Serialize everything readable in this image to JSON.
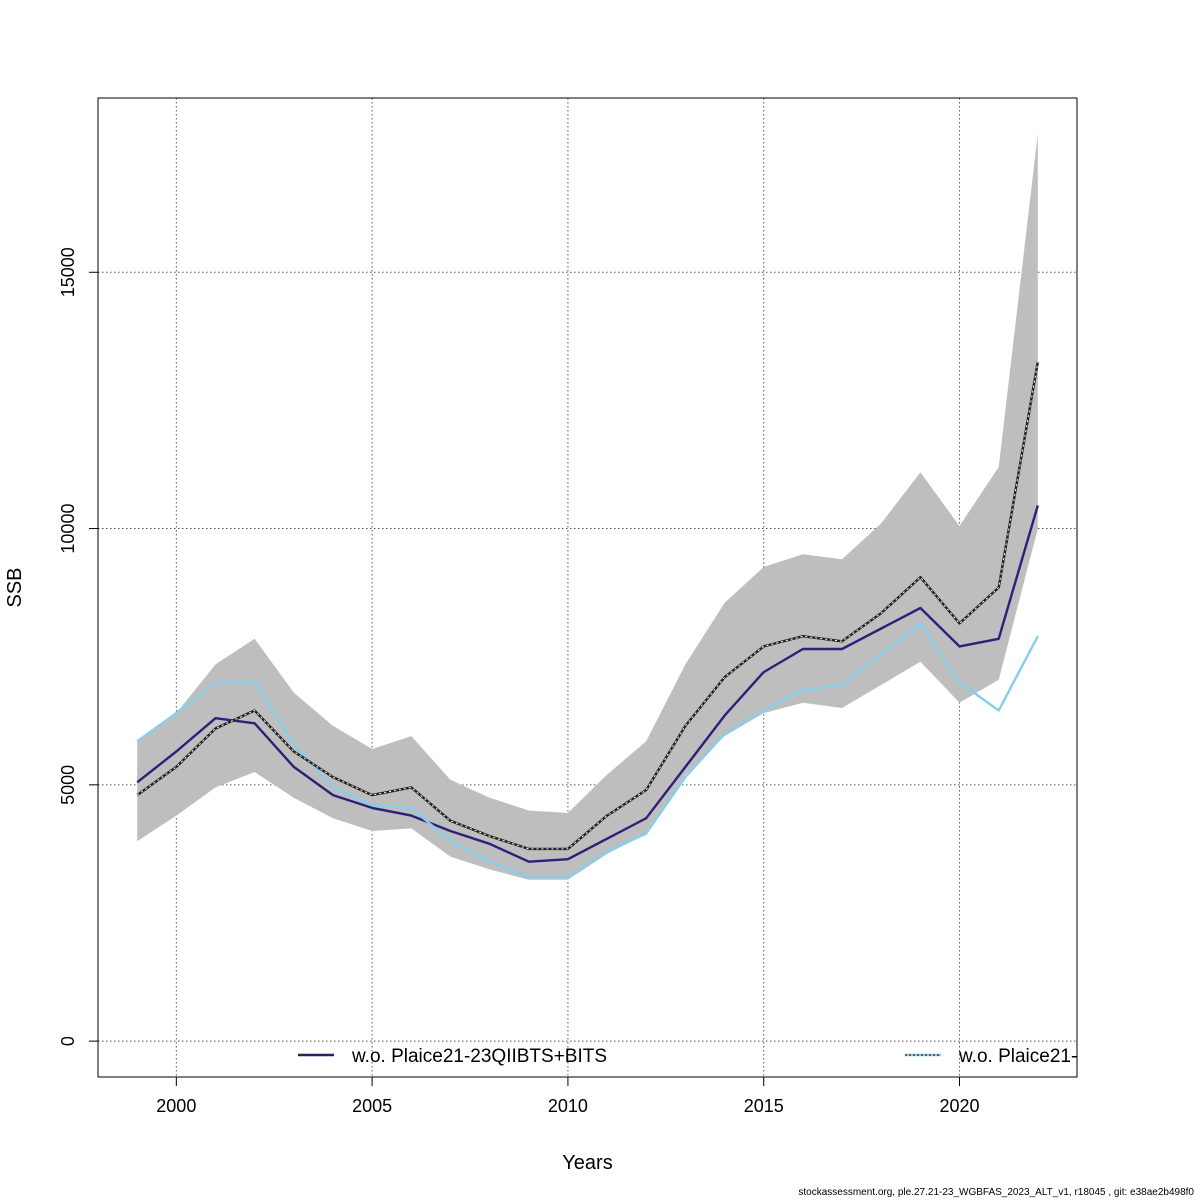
{
  "chart_data": {
    "type": "line",
    "xlabel": "Years",
    "ylabel": "SSB",
    "xlim": [
      1998,
      2023
    ],
    "ylim": [
      -700,
      18400
    ],
    "x_ticks": [
      2000,
      2005,
      2010,
      2015,
      2020
    ],
    "y_ticks": [
      0,
      5000,
      10000,
      15000
    ],
    "grid": true,
    "x": [
      1999,
      2000,
      2001,
      2002,
      2003,
      2004,
      2005,
      2006,
      2007,
      2008,
      2009,
      2010,
      2011,
      2012,
      2013,
      2014,
      2015,
      2016,
      2017,
      2018,
      2019,
      2020,
      2021,
      2022
    ],
    "band": {
      "upper": [
        5850,
        6400,
        7350,
        7850,
        6800,
        6150,
        5700,
        5950,
        5100,
        4750,
        4500,
        4450,
        5200,
        5850,
        7350,
        8550,
        9250,
        9500,
        9400,
        10100,
        11100,
        10050,
        11200,
        17700
      ],
      "lower": [
        3900,
        4400,
        4950,
        5250,
        4750,
        4350,
        4100,
        4150,
        3600,
        3350,
        3150,
        3150,
        3650,
        4050,
        5200,
        5950,
        6400,
        6600,
        6500,
        6950,
        7400,
        6600,
        7050,
        10000
      ],
      "color": "#bebebe"
    },
    "series": [
      {
        "name": "w.o. Plaice21-23QIIBTS+BITS",
        "color": "#2f1f7a",
        "values": [
          5050,
          5650,
          6300,
          6200,
          5350,
          4800,
          4550,
          4400,
          4100,
          3850,
          3500,
          3550,
          3950,
          4350,
          5350,
          6350,
          7200,
          7650,
          7650,
          8050,
          8450,
          7700,
          7850,
          10450
        ]
      },
      {
        "name": "w.o. Plaice21-",
        "color": "#87ceeb",
        "values": [
          5850,
          6400,
          7000,
          7000,
          5800,
          4950,
          4600,
          4550,
          3900,
          3500,
          3200,
          3200,
          3700,
          4050,
          5150,
          6000,
          6450,
          6850,
          6950,
          7550,
          8150,
          7000,
          6450,
          7900
        ]
      },
      {
        "name": "",
        "color": "#222222",
        "dashed": true,
        "values": [
          4800,
          5350,
          6100,
          6450,
          5650,
          5150,
          4800,
          4950,
          4300,
          4000,
          3750,
          3750,
          4400,
          4900,
          6150,
          7100,
          7700,
          7900,
          7800,
          8350,
          9050,
          8150,
          8850,
          13250
        ]
      }
    ],
    "legend": [
      {
        "label": "w.o. Plaice21-23QIIBTS+BITS",
        "line_color": "#2f1f7a"
      },
      {
        "label": "w.o. Plaice21-",
        "line_color": "#87ceeb"
      }
    ],
    "legend_placement": "bottom"
  },
  "footer": "stockassessment.org, ple.27.21-23_WGBFAS_2023_ALT_v1, r18045 , git: e38ae2b498f0"
}
